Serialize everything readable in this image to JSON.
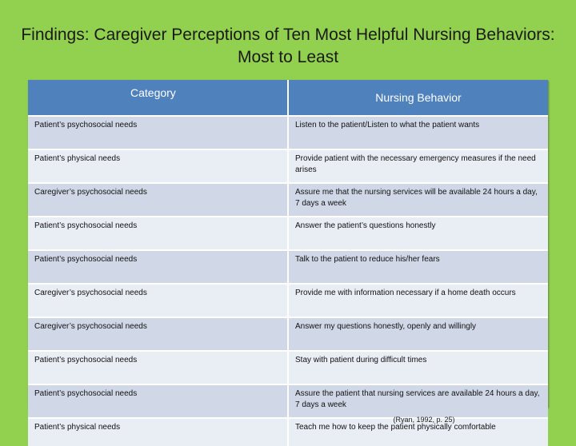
{
  "title": "Findings: Caregiver Perceptions of Ten Most Helpful Nursing Behaviors: Most to Least",
  "table": {
    "headers": [
      "Category",
      "Nursing Behavior"
    ],
    "rows": [
      [
        "Patient’s psychosocial needs",
        "Listen to the patient/Listen to what the patient wants"
      ],
      [
        "Patient’s physical needs",
        "Provide patient with the necessary emergency measures if the need arises"
      ],
      [
        "Caregiver’s psychosocial needs",
        "Assure me that the nursing services will be available 24 hours a day, 7 days a week"
      ],
      [
        "Patient’s psychosocial needs",
        "Answer the patient’s questions honestly"
      ],
      [
        "Patient’s psychosocial needs",
        "Talk to the patient to reduce his/her fears"
      ],
      [
        "Caregiver’s psychosocial needs",
        "Provide me with information necessary if a home death occurs"
      ],
      [
        "Caregiver’s psychosocial needs",
        "Answer my questions honestly, openly and willingly"
      ],
      [
        "Patient’s psychosocial needs",
        "Stay with patient during difficult times"
      ],
      [
        "Patient’s psychosocial needs",
        "Assure the patient that nursing services are available 24 hours a day, 7 days a week"
      ],
      [
        "Patient’s physical needs",
        "Teach me how to keep the patient physically comfortable"
      ]
    ]
  },
  "citation": "(Ryan, 1992, p. 25)"
}
